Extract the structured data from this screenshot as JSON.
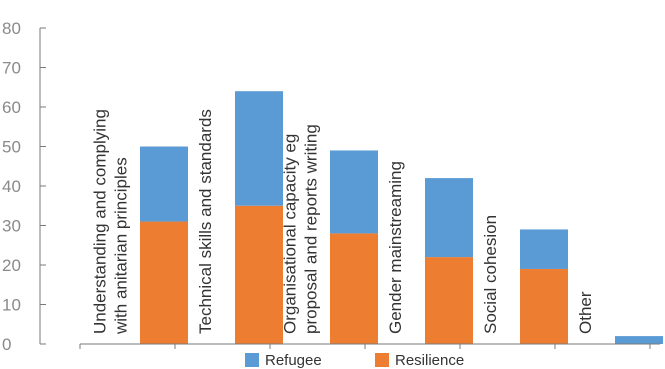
{
  "chart_data": {
    "type": "bar",
    "stacked": true,
    "categories": [
      [
        "Understanding and complying",
        "with anitarian principles"
      ],
      [
        "Technical skills and standards"
      ],
      [
        "Organisational capacity eg",
        "proposal and reports writing"
      ],
      [
        "Gender mainstreaming"
      ],
      [
        "Social cohesion"
      ],
      [
        "Other"
      ]
    ],
    "series": [
      {
        "name": "Resilience",
        "values": [
          31,
          35,
          28,
          22,
          19,
          0
        ],
        "color": "#ed7d31"
      },
      {
        "name": "Refugee",
        "values": [
          19,
          29,
          21,
          20,
          10,
          2
        ],
        "color": "#5b9bd5"
      }
    ],
    "yticks": [
      0,
      10,
      20,
      30,
      40,
      50,
      60,
      70,
      80
    ],
    "ylim": [
      0,
      80
    ],
    "title": "",
    "xlabel": "",
    "ylabel": "",
    "grid": false,
    "legend": {
      "position": "bottom",
      "order": [
        "Refugee",
        "Resilience"
      ]
    }
  }
}
